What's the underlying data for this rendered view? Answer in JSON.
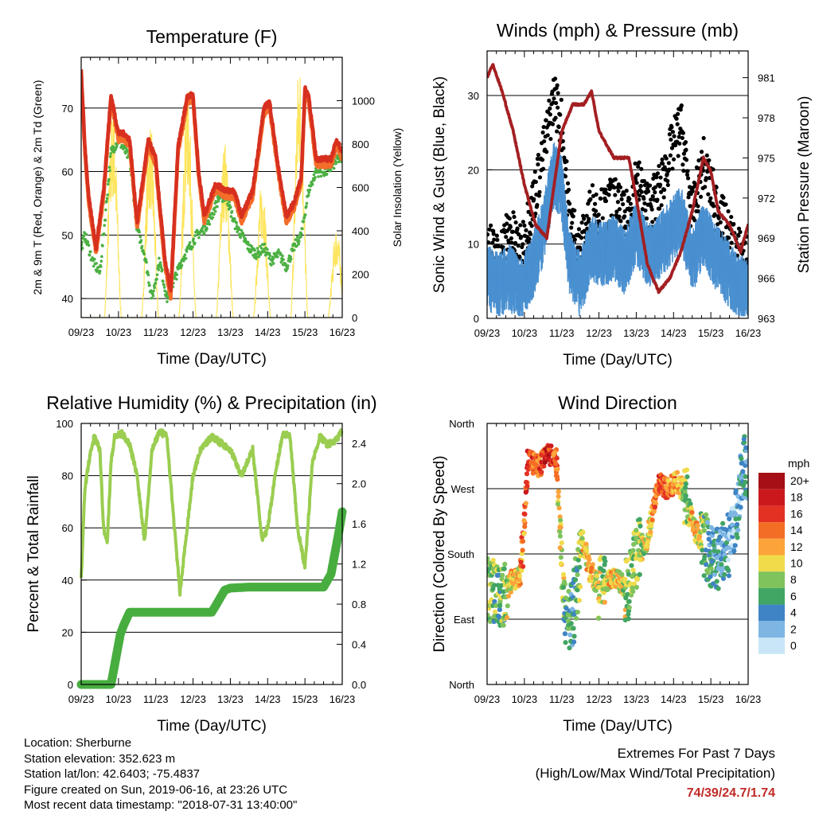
{
  "chart_data": [
    {
      "type": "line",
      "title": "Temperature (F)",
      "xlabel": "Time (Day/UTC)",
      "ylabel": "2m & 9m T (Red, Orange) & 2m Td (Green)",
      "ylabel_right": "Solar Insolation (Yellow)",
      "x_ticks": [
        "09/23",
        "10/23",
        "11/23",
        "12/23",
        "13/23",
        "14/23",
        "15/23",
        "16/23"
      ],
      "ylim": [
        37,
        78
      ],
      "y_ticks": [
        40,
        50,
        60,
        70
      ],
      "ylim_right": [
        0,
        1200
      ],
      "y_ticks_right": [
        0,
        200,
        400,
        600,
        800,
        1000
      ],
      "grid": true,
      "series": [
        {
          "name": "2m T",
          "color": "#d7301f",
          "t": [
            0,
            0.1,
            0.2,
            0.4,
            0.6,
            0.8,
            1.0,
            1.15,
            1.3,
            1.5,
            1.8,
            2.0,
            2.1,
            2.25,
            2.4,
            2.6,
            2.85,
            3.0,
            3.15,
            3.3,
            3.6,
            3.9,
            4.1,
            4.3,
            4.6,
            4.9,
            5.05,
            5.3,
            5.5,
            5.7,
            5.9,
            6.0,
            6.1,
            6.3,
            6.5,
            6.7,
            6.85,
            7.0
          ],
          "y": [
            76,
            64,
            56,
            48,
            57,
            72,
            66,
            66,
            65,
            52,
            65,
            62,
            55,
            46,
            41,
            64,
            72,
            72,
            60,
            53,
            58,
            57,
            57,
            53,
            57,
            70,
            71,
            60,
            53,
            55,
            59,
            73,
            72,
            62,
            62,
            62,
            65,
            63
          ]
        },
        {
          "name": "9m T",
          "color": "#f46d2a",
          "t": [
            0,
            0.1,
            0.2,
            0.4,
            0.6,
            0.8,
            1.0,
            1.15,
            1.3,
            1.5,
            1.8,
            2.0,
            2.1,
            2.25,
            2.4,
            2.6,
            2.85,
            3.0,
            3.15,
            3.3,
            3.6,
            3.9,
            4.1,
            4.3,
            4.6,
            4.9,
            5.05,
            5.3,
            5.5,
            5.7,
            5.9,
            6.0,
            6.1,
            6.3,
            6.5,
            6.7,
            6.85,
            7.0
          ],
          "y": [
            75,
            63,
            55,
            47,
            56,
            71,
            65,
            65,
            64,
            51,
            64,
            61,
            54,
            45,
            40,
            63,
            71,
            71,
            59,
            52,
            57,
            56,
            56,
            52,
            56,
            69,
            70,
            59,
            52,
            54,
            58,
            72,
            71,
            61,
            61,
            61,
            64,
            62
          ]
        },
        {
          "name": "2m Td",
          "color": "#4cb043",
          "t": [
            0,
            0.1,
            0.3,
            0.5,
            0.6,
            0.8,
            1.0,
            1.2,
            1.3,
            1.5,
            1.7,
            1.9,
            2.1,
            2.3,
            2.5,
            2.7,
            2.9,
            3.1,
            3.3,
            3.5,
            3.7,
            3.9,
            4.1,
            4.3,
            4.5,
            4.7,
            4.9,
            5.1,
            5.3,
            5.5,
            5.7,
            5.9,
            6.1,
            6.3,
            6.6,
            6.9,
            7.0
          ],
          "y": [
            48,
            50,
            46,
            44,
            50,
            63,
            65,
            63,
            62,
            51,
            47,
            40,
            46,
            40,
            43,
            46,
            48,
            50,
            51,
            53,
            56,
            56,
            52,
            50,
            48,
            47,
            48,
            46,
            47,
            45,
            48,
            50,
            57,
            60,
            60,
            62,
            62
          ]
        },
        {
          "name": "Solar Insolation",
          "color": "#fde560",
          "axis": "right",
          "days": [
            0.85,
            1.85,
            2.85,
            3.85,
            4.85,
            5.85,
            6.85
          ],
          "peaks": [
            980,
            900,
            1060,
            820,
            640,
            1190,
            420
          ]
        }
      ]
    },
    {
      "type": "line",
      "title": "Winds (mph) & Pressure (mb)",
      "xlabel": "Time (Day/UTC)",
      "ylabel": "Sonic Wind & Gust (Blue, Black)",
      "ylabel_right": "Station Pressure (Maroon)",
      "x_ticks": [
        "09/23",
        "10/23",
        "11/23",
        "12/23",
        "13/23",
        "14/23",
        "15/23",
        "16/23"
      ],
      "ylim": [
        0,
        36
      ],
      "y_ticks": [
        0,
        10,
        20,
        30
      ],
      "ylim_right": [
        963,
        983
      ],
      "y_ticks_right": [
        963,
        966,
        969,
        972,
        975,
        978,
        981
      ],
      "grid": true,
      "series": [
        {
          "name": "Sonic Wind",
          "color": "#4a90d0",
          "t": [
            0,
            0.3,
            0.6,
            0.9,
            1.2,
            1.5,
            1.8,
            2.0,
            2.2,
            2.5,
            2.8,
            3.1,
            3.4,
            3.7,
            4.0,
            4.3,
            4.6,
            4.9,
            5.2,
            5.5,
            5.8,
            6.1,
            6.4,
            6.7,
            7.0
          ],
          "y": [
            6,
            5,
            6,
            4,
            7,
            12,
            20,
            18,
            8,
            5,
            10,
            9,
            10,
            8,
            12,
            9,
            10,
            12,
            14,
            8,
            12,
            9,
            7,
            5,
            4
          ]
        },
        {
          "name": "Gust",
          "color": "#000000",
          "t": [
            0,
            0.3,
            0.6,
            0.9,
            1.2,
            1.5,
            1.8,
            2.0,
            2.2,
            2.5,
            2.8,
            3.1,
            3.4,
            3.7,
            4.0,
            4.3,
            4.6,
            4.9,
            5.2,
            5.5,
            5.8,
            6.1,
            6.4,
            6.7,
            7.0
          ],
          "y": [
            10,
            8,
            12,
            9,
            15,
            22,
            30,
            26,
            14,
            9,
            15,
            14,
            16,
            13,
            19,
            15,
            17,
            22,
            26,
            14,
            21,
            16,
            12,
            9,
            8
          ]
        },
        {
          "name": "Station Pressure",
          "color": "#a31f22",
          "axis": "right",
          "t": [
            0,
            0.15,
            0.4,
            0.7,
            1.0,
            1.3,
            1.6,
            1.8,
            2.0,
            2.3,
            2.6,
            2.8,
            3.0,
            3.2,
            3.4,
            3.6,
            3.8,
            4.0,
            4.3,
            4.6,
            4.9,
            5.2,
            5.5,
            5.8,
            6.0,
            6.2,
            6.5,
            6.8,
            7.0
          ],
          "y": [
            981,
            982,
            980,
            977,
            973,
            970,
            969,
            973,
            977,
            979,
            979,
            980,
            977,
            976,
            975,
            975,
            975,
            972,
            967,
            965,
            966,
            968,
            971,
            975,
            974,
            971,
            970,
            968,
            970
          ]
        }
      ]
    },
    {
      "type": "line",
      "title": "Relative Humidity (%) & Precipitation (in)",
      "xlabel": "Time (Day/UTC)",
      "ylabel": "Percent & Total Rainfall",
      "x_ticks": [
        "09/23",
        "10/23",
        "11/23",
        "12/23",
        "13/23",
        "14/23",
        "15/23",
        "16/23"
      ],
      "ylim": [
        0,
        100
      ],
      "y_ticks": [
        0,
        20,
        40,
        60,
        80,
        100
      ],
      "ylim_right": [
        0,
        2.6
      ],
      "y_ticks_right": [
        "0.0",
        "0.4",
        "0.8",
        "1.2",
        "1.6",
        "2.0",
        "2.4"
      ],
      "grid": true,
      "series": [
        {
          "name": "Relative Humidity",
          "color": "#9acd50",
          "t": [
            0,
            0.1,
            0.2,
            0.35,
            0.5,
            0.6,
            0.7,
            0.8,
            0.9,
            1.1,
            1.3,
            1.5,
            1.7,
            1.9,
            2.1,
            2.3,
            2.5,
            2.65,
            2.8,
            3.0,
            3.2,
            3.5,
            3.8,
            4.0,
            4.3,
            4.6,
            4.85,
            5.0,
            5.2,
            5.4,
            5.6,
            5.8,
            6.0,
            6.2,
            6.4,
            6.6,
            6.8,
            7.0
          ],
          "y": [
            40,
            75,
            85,
            95,
            90,
            60,
            55,
            85,
            95,
            96,
            92,
            80,
            55,
            90,
            97,
            95,
            60,
            35,
            55,
            80,
            90,
            95,
            92,
            90,
            80,
            90,
            55,
            60,
            80,
            96,
            95,
            60,
            45,
            85,
            95,
            92,
            93,
            97
          ]
        },
        {
          "name": "Total Rainfall",
          "color": "#47ad3f",
          "axis": "right",
          "t": [
            0,
            0.8,
            0.95,
            1.05,
            1.15,
            1.3,
            2.0,
            2.5,
            3.0,
            3.5,
            3.6,
            3.85,
            4.0,
            4.5,
            5.0,
            5.5,
            6.0,
            6.5,
            6.7,
            6.9,
            7.0
          ],
          "y": [
            0,
            0,
            0.3,
            0.5,
            0.6,
            0.72,
            0.72,
            0.72,
            0.72,
            0.72,
            0.78,
            0.94,
            0.96,
            0.97,
            0.97,
            0.97,
            0.97,
            0.97,
            1.1,
            1.5,
            1.72
          ]
        }
      ]
    },
    {
      "type": "scatter",
      "title": "Wind Direction",
      "xlabel": "Time (Day/UTC)",
      "ylabel": "Direction (Colored By Speed)",
      "x_ticks": [
        "09/23",
        "10/23",
        "11/23",
        "12/23",
        "13/23",
        "14/23",
        "15/23",
        "16/23"
      ],
      "y_ticks": [
        "North",
        "East",
        "South",
        "West",
        "North"
      ],
      "ylim": [
        0,
        360
      ],
      "grid": true,
      "color_by": "speed",
      "legend": {
        "title": "mph",
        "labels": [
          "20+",
          "18",
          "16",
          "14",
          "12",
          "10",
          "8",
          "6",
          "4",
          "2",
          "0"
        ],
        "colors": [
          "#a50f15",
          "#cb181d",
          "#e33124",
          "#f46d25",
          "#fca43a",
          "#f0dc4b",
          "#7fc35c",
          "#41a563",
          "#3f84c4",
          "#7db6e3",
          "#c8e6f8"
        ]
      },
      "series": [
        {
          "name": "Wind Direction",
          "t": [
            0.1,
            0.35,
            0.6,
            0.9,
            1.1,
            1.4,
            1.6,
            1.85,
            2.1,
            2.3,
            2.55,
            2.75,
            2.9,
            3.1,
            3.35,
            3.6,
            3.8,
            4.0,
            4.3,
            4.6,
            4.8,
            5.1,
            5.35,
            5.6,
            5.85,
            6.1,
            6.35,
            6.6,
            6.85
          ],
          "dir": [
            130,
            110,
            140,
            150,
            310,
            300,
            320,
            310,
            80,
            100,
            200,
            160,
            140,
            130,
            150,
            140,
            130,
            180,
            200,
            280,
            270,
            280,
            260,
            210,
            190,
            170,
            180,
            200,
            300
          ],
          "speed": [
            8,
            6,
            10,
            12,
            16,
            14,
            18,
            14,
            6,
            4,
            10,
            12,
            10,
            8,
            12,
            10,
            8,
            8,
            10,
            16,
            14,
            12,
            8,
            12,
            6,
            4,
            4,
            2,
            4
          ]
        }
      ]
    }
  ],
  "footer": {
    "location": "Location: Sherburne",
    "elevation": "Station elevation: 352.623 m",
    "latlon": "Station lat/lon: 42.6403; -75.4837",
    "created": "Figure created on Sun, 2019-06-16, at 23:26 UTC",
    "timestamp": "Most recent data timestamp: \"2018-07-31 13:40:00\"",
    "extremes_title": "Extremes For Past 7 Days",
    "extremes_subtitle": "(High/Low/Max Wind/Total Precipitation)",
    "extremes_values": "74/39/24.7/1.74"
  },
  "colors": {
    "temp_2m": "#d7301f",
    "temp_9m": "#f46d2a",
    "dewpoint": "#4cb043",
    "solar": "#fde560",
    "wind": "#4a90d0",
    "gust": "#000000",
    "pressure": "#a31f22",
    "rh": "#9acd50",
    "rain": "#47ad3f",
    "extremes_text": "#c02a25"
  }
}
